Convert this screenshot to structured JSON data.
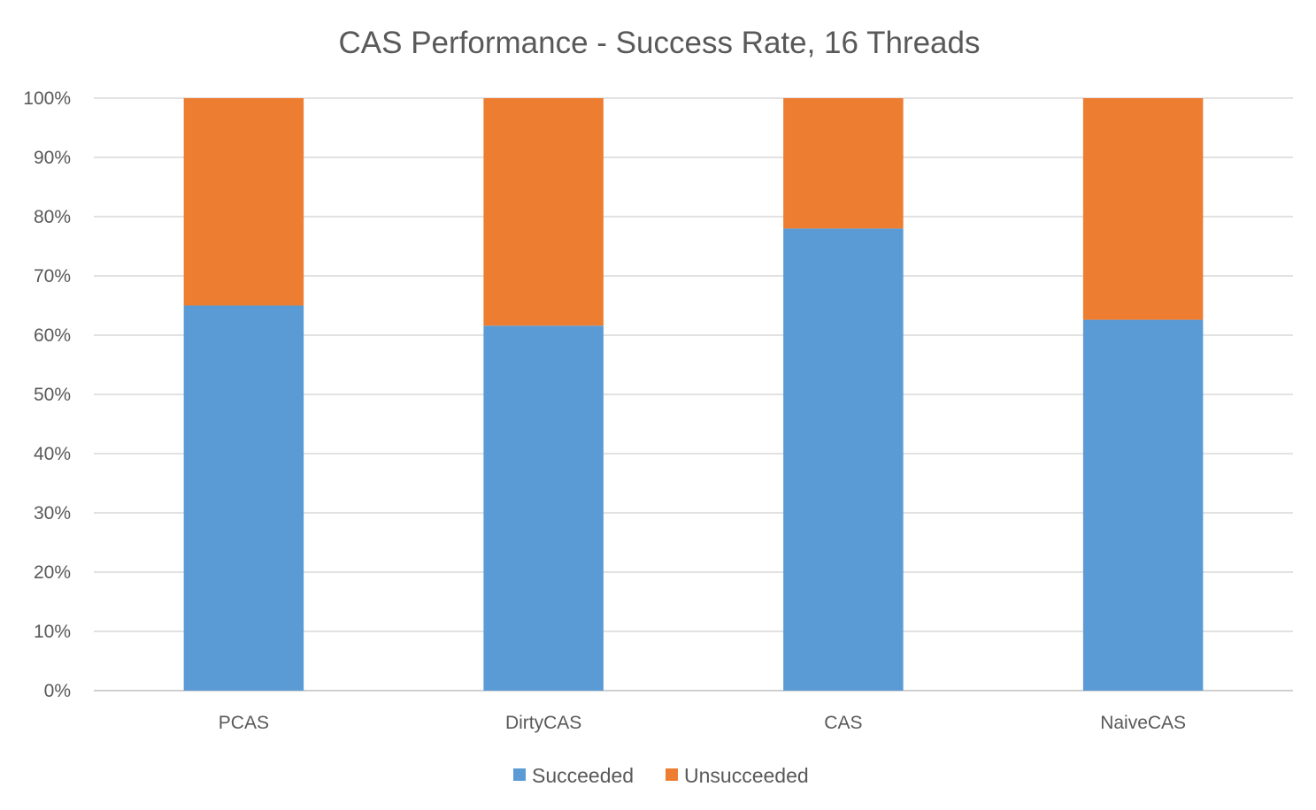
{
  "chart_data": {
    "type": "bar",
    "stacked": true,
    "title": "CAS Performance - Success Rate, 16 Threads",
    "xlabel": "",
    "ylabel": "",
    "categories": [
      "PCAS",
      "DirtyCAS",
      "CAS",
      "NaiveCAS"
    ],
    "series": [
      {
        "name": "Succeeded",
        "values": [
          65,
          61.6,
          78,
          62.6
        ],
        "color": "#5b9bd5"
      },
      {
        "name": "Unsucceeded",
        "values": [
          35,
          38.4,
          22,
          37.4
        ],
        "color": "#ed7d31"
      }
    ],
    "ylim": [
      0,
      100
    ],
    "yticks": [
      "0%",
      "10%",
      "20%",
      "30%",
      "40%",
      "50%",
      "60%",
      "70%",
      "80%",
      "90%",
      "100%"
    ],
    "grid": true,
    "legend": "bottom"
  }
}
